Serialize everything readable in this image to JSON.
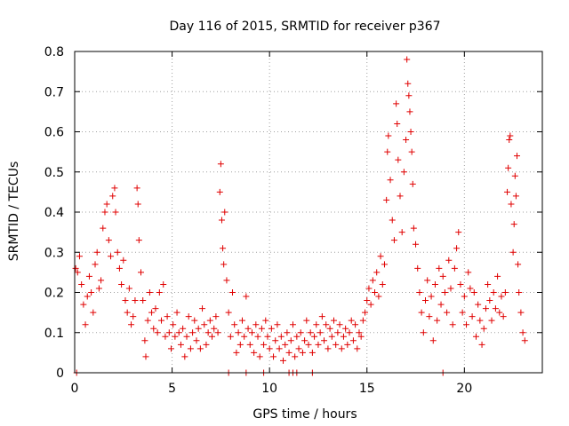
{
  "chart_data": {
    "type": "scatter",
    "title": "Day 116 of 2015, SRMTID for receiver p367",
    "xlabel": "GPS time / hours",
    "ylabel": "SRMTID / TECUs",
    "xlim": [
      0,
      24
    ],
    "ylim": [
      0,
      0.8
    ],
    "xticks": [
      0,
      5,
      10,
      15,
      20
    ],
    "yticks": [
      0,
      0.1,
      0.2,
      0.3,
      0.4,
      0.5,
      0.6,
      0.7,
      0.8
    ],
    "grid": true,
    "marker": "+",
    "color": "#e00000",
    "series": [
      {
        "name": "SRMTID",
        "points": [
          [
            0.05,
            0.26
          ],
          [
            0.15,
            0.25
          ],
          [
            0.25,
            0.29
          ],
          [
            0.35,
            0.22
          ],
          [
            0.45,
            0.17
          ],
          [
            0.55,
            0.12
          ],
          [
            0.65,
            0.19
          ],
          [
            0.75,
            0.24
          ],
          [
            0.85,
            0.2
          ],
          [
            0.95,
            0.15
          ],
          [
            1.05,
            0.27
          ],
          [
            1.15,
            0.3
          ],
          [
            1.25,
            0.21
          ],
          [
            1.35,
            0.23
          ],
          [
            1.45,
            0.36
          ],
          [
            1.55,
            0.4
          ],
          [
            1.65,
            0.42
          ],
          [
            1.75,
            0.33
          ],
          [
            1.85,
            0.29
          ],
          [
            1.95,
            0.44
          ],
          [
            2.05,
            0.46
          ],
          [
            2.1,
            0.4
          ],
          [
            2.2,
            0.3
          ],
          [
            2.3,
            0.26
          ],
          [
            2.4,
            0.22
          ],
          [
            2.5,
            0.28
          ],
          [
            2.6,
            0.18
          ],
          [
            2.7,
            0.15
          ],
          [
            2.8,
            0.21
          ],
          [
            2.9,
            0.12
          ],
          [
            3.0,
            0.14
          ],
          [
            3.1,
            0.18
          ],
          [
            3.2,
            0.46
          ],
          [
            3.25,
            0.42
          ],
          [
            3.3,
            0.33
          ],
          [
            3.4,
            0.25
          ],
          [
            3.5,
            0.18
          ],
          [
            3.6,
            0.08
          ],
          [
            3.65,
            0.04
          ],
          [
            3.75,
            0.13
          ],
          [
            3.85,
            0.2
          ],
          [
            3.95,
            0.15
          ],
          [
            4.05,
            0.11
          ],
          [
            4.15,
            0.16
          ],
          [
            4.25,
            0.1
          ],
          [
            4.35,
            0.2
          ],
          [
            4.45,
            0.13
          ],
          [
            4.55,
            0.22
          ],
          [
            4.65,
            0.09
          ],
          [
            4.75,
            0.14
          ],
          [
            4.85,
            0.1
          ],
          [
            4.95,
            0.06
          ],
          [
            5.05,
            0.12
          ],
          [
            5.15,
            0.09
          ],
          [
            5.25,
            0.15
          ],
          [
            5.35,
            0.1
          ],
          [
            5.45,
            0.07
          ],
          [
            5.55,
            0.11
          ],
          [
            5.65,
            0.04
          ],
          [
            5.75,
            0.09
          ],
          [
            5.85,
            0.14
          ],
          [
            5.95,
            0.06
          ],
          [
            6.05,
            0.1
          ],
          [
            6.15,
            0.13
          ],
          [
            6.25,
            0.08
          ],
          [
            6.35,
            0.11
          ],
          [
            6.45,
            0.06
          ],
          [
            6.55,
            0.16
          ],
          [
            6.65,
            0.12
          ],
          [
            6.75,
            0.07
          ],
          [
            6.85,
            0.1
          ],
          [
            6.95,
            0.13
          ],
          [
            7.05,
            0.09
          ],
          [
            7.15,
            0.11
          ],
          [
            7.25,
            0.14
          ],
          [
            7.35,
            0.1
          ],
          [
            7.45,
            0.45
          ],
          [
            7.5,
            0.52
          ],
          [
            7.55,
            0.38
          ],
          [
            7.6,
            0.31
          ],
          [
            7.65,
            0.27
          ],
          [
            7.7,
            0.4
          ],
          [
            7.8,
            0.23
          ],
          [
            7.9,
            0.15
          ],
          [
            8.0,
            0.09
          ],
          [
            8.1,
            0.2
          ],
          [
            8.2,
            0.12
          ],
          [
            8.3,
            0.05
          ],
          [
            8.4,
            0.1
          ],
          [
            8.5,
            0.07
          ],
          [
            8.6,
            0.13
          ],
          [
            8.7,
            0.09
          ],
          [
            8.8,
            0.19
          ],
          [
            8.9,
            0.11
          ],
          [
            9.0,
            0.07
          ],
          [
            9.1,
            0.1
          ],
          [
            9.2,
            0.05
          ],
          [
            9.3,
            0.12
          ],
          [
            9.4,
            0.09
          ],
          [
            9.5,
            0.04
          ],
          [
            9.6,
            0.11
          ],
          [
            9.7,
            0.07
          ],
          [
            9.8,
            0.13
          ],
          [
            9.9,
            0.09
          ],
          [
            10.0,
            0.06
          ],
          [
            10.1,
            0.11
          ],
          [
            10.2,
            0.04
          ],
          [
            10.3,
            0.08
          ],
          [
            10.4,
            0.12
          ],
          [
            10.5,
            0.06
          ],
          [
            10.6,
            0.09
          ],
          [
            10.7,
            0.03
          ],
          [
            10.8,
            0.07
          ],
          [
            10.9,
            0.1
          ],
          [
            11.0,
            0.05
          ],
          [
            11.1,
            0.08
          ],
          [
            11.2,
            0.12
          ],
          [
            11.3,
            0.04
          ],
          [
            11.4,
            0.09
          ],
          [
            11.5,
            0.06
          ],
          [
            11.6,
            0.1
          ],
          [
            11.7,
            0.05
          ],
          [
            11.8,
            0.08
          ],
          [
            11.9,
            0.13
          ],
          [
            12.0,
            0.07
          ],
          [
            12.1,
            0.1
          ],
          [
            12.2,
            0.05
          ],
          [
            12.3,
            0.09
          ],
          [
            12.4,
            0.12
          ],
          [
            12.5,
            0.07
          ],
          [
            12.6,
            0.1
          ],
          [
            12.7,
            0.14
          ],
          [
            12.8,
            0.08
          ],
          [
            12.9,
            0.12
          ],
          [
            13.0,
            0.06
          ],
          [
            13.1,
            0.11
          ],
          [
            13.2,
            0.09
          ],
          [
            13.3,
            0.13
          ],
          [
            13.4,
            0.07
          ],
          [
            13.5,
            0.1
          ],
          [
            13.6,
            0.12
          ],
          [
            13.7,
            0.06
          ],
          [
            13.8,
            0.09
          ],
          [
            13.9,
            0.11
          ],
          [
            14.0,
            0.07
          ],
          [
            14.1,
            0.1
          ],
          [
            14.2,
            0.13
          ],
          [
            14.3,
            0.08
          ],
          [
            14.4,
            0.12
          ],
          [
            14.5,
            0.06
          ],
          [
            14.6,
            0.1
          ],
          [
            14.7,
            0.09
          ],
          [
            14.8,
            0.13
          ],
          [
            14.9,
            0.15
          ],
          [
            15.0,
            0.18
          ],
          [
            15.1,
            0.21
          ],
          [
            15.2,
            0.17
          ],
          [
            15.3,
            0.23
          ],
          [
            15.4,
            0.2
          ],
          [
            15.5,
            0.25
          ],
          [
            15.6,
            0.19
          ],
          [
            15.7,
            0.29
          ],
          [
            15.8,
            0.22
          ],
          [
            15.9,
            0.27
          ],
          [
            16.0,
            0.43
          ],
          [
            16.05,
            0.55
          ],
          [
            16.1,
            0.59
          ],
          [
            16.2,
            0.48
          ],
          [
            16.3,
            0.38
          ],
          [
            16.4,
            0.33
          ],
          [
            16.5,
            0.67
          ],
          [
            16.55,
            0.62
          ],
          [
            16.6,
            0.53
          ],
          [
            16.7,
            0.44
          ],
          [
            16.8,
            0.35
          ],
          [
            16.9,
            0.5
          ],
          [
            17.0,
            0.58
          ],
          [
            17.05,
            0.78
          ],
          [
            17.1,
            0.72
          ],
          [
            17.15,
            0.69
          ],
          [
            17.2,
            0.65
          ],
          [
            17.25,
            0.6
          ],
          [
            17.3,
            0.55
          ],
          [
            17.35,
            0.47
          ],
          [
            17.4,
            0.36
          ],
          [
            17.5,
            0.32
          ],
          [
            17.6,
            0.26
          ],
          [
            17.7,
            0.2
          ],
          [
            17.8,
            0.15
          ],
          [
            17.9,
            0.1
          ],
          [
            18.0,
            0.18
          ],
          [
            18.1,
            0.23
          ],
          [
            18.2,
            0.14
          ],
          [
            18.3,
            0.19
          ],
          [
            18.4,
            0.08
          ],
          [
            18.5,
            0.22
          ],
          [
            18.6,
            0.13
          ],
          [
            18.7,
            0.26
          ],
          [
            18.8,
            0.17
          ],
          [
            18.9,
            0.24
          ],
          [
            19.0,
            0.2
          ],
          [
            19.1,
            0.15
          ],
          [
            19.2,
            0.28
          ],
          [
            19.3,
            0.21
          ],
          [
            19.4,
            0.12
          ],
          [
            19.5,
            0.26
          ],
          [
            19.6,
            0.31
          ],
          [
            19.7,
            0.35
          ],
          [
            19.8,
            0.22
          ],
          [
            19.9,
            0.15
          ],
          [
            20.0,
            0.19
          ],
          [
            20.1,
            0.12
          ],
          [
            20.2,
            0.25
          ],
          [
            20.3,
            0.21
          ],
          [
            20.4,
            0.14
          ],
          [
            20.5,
            0.2
          ],
          [
            20.6,
            0.09
          ],
          [
            20.7,
            0.17
          ],
          [
            20.8,
            0.13
          ],
          [
            20.9,
            0.07
          ],
          [
            21.0,
            0.11
          ],
          [
            21.1,
            0.16
          ],
          [
            21.2,
            0.22
          ],
          [
            21.3,
            0.18
          ],
          [
            21.4,
            0.13
          ],
          [
            21.5,
            0.2
          ],
          [
            21.6,
            0.16
          ],
          [
            21.7,
            0.24
          ],
          [
            21.8,
            0.15
          ],
          [
            21.9,
            0.19
          ],
          [
            22.0,
            0.14
          ],
          [
            22.1,
            0.2
          ],
          [
            22.2,
            0.45
          ],
          [
            22.25,
            0.51
          ],
          [
            22.3,
            0.58
          ],
          [
            22.35,
            0.59
          ],
          [
            22.4,
            0.42
          ],
          [
            22.5,
            0.3
          ],
          [
            22.55,
            0.37
          ],
          [
            22.6,
            0.49
          ],
          [
            22.65,
            0.44
          ],
          [
            22.7,
            0.54
          ],
          [
            22.75,
            0.27
          ],
          [
            22.8,
            0.2
          ],
          [
            22.9,
            0.15
          ],
          [
            23.0,
            0.1
          ],
          [
            23.1,
            0.08
          ],
          [
            0.1,
            0
          ],
          [
            7.9,
            0
          ],
          [
            8.8,
            0
          ],
          [
            9.7,
            0
          ],
          [
            11.0,
            0
          ],
          [
            11.2,
            0
          ],
          [
            11.4,
            0
          ],
          [
            12.2,
            0
          ],
          [
            18.9,
            0
          ]
        ]
      }
    ]
  }
}
